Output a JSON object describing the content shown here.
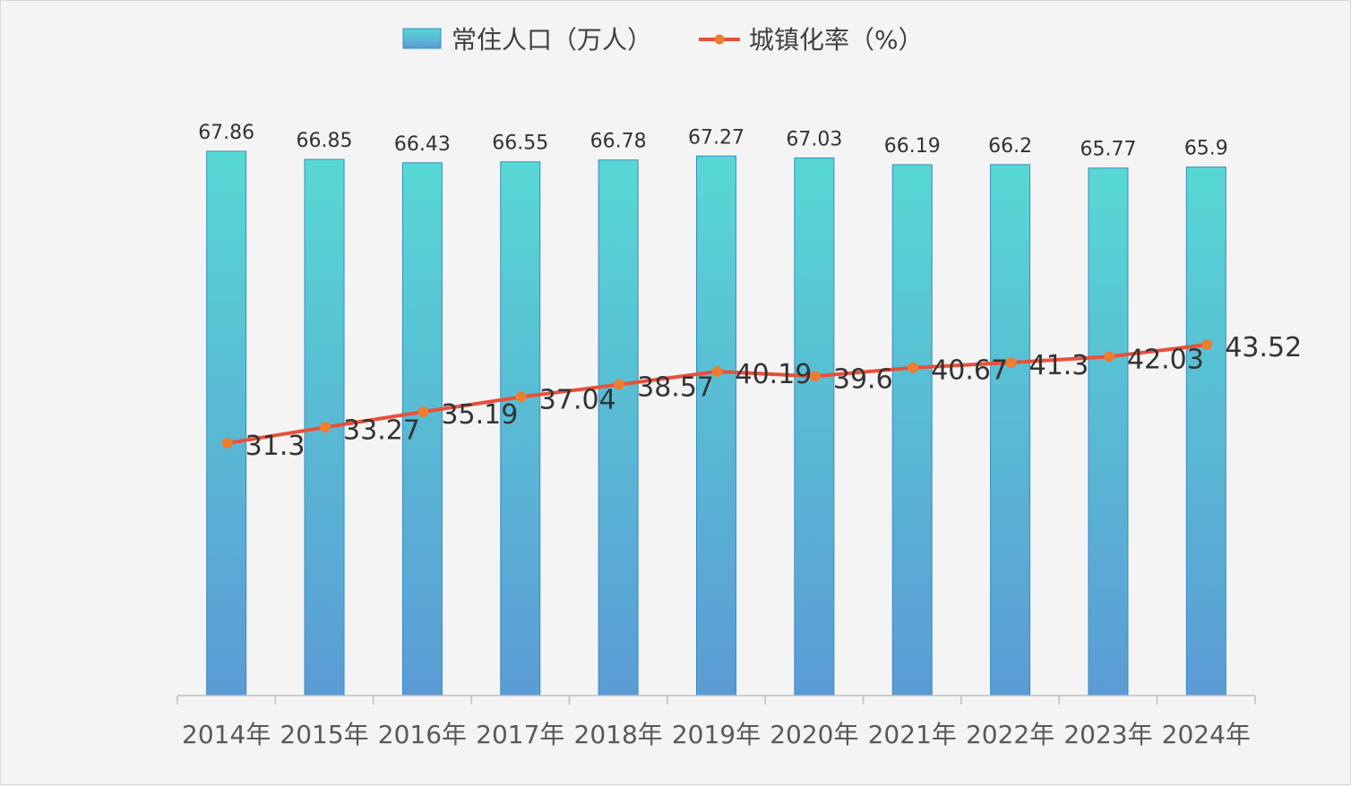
{
  "chart_data": {
    "type": "bar",
    "categories": [
      "2014年",
      "2015年",
      "2016年",
      "2017年",
      "2018年",
      "2019年",
      "2020年",
      "2021年",
      "2022年",
      "2023年",
      "2024年"
    ],
    "series": [
      {
        "name": "常住人口（万人）",
        "type": "bar",
        "values": [
          67.86,
          66.85,
          66.43,
          66.55,
          66.78,
          67.27,
          67.03,
          66.19,
          66.2,
          65.77,
          65.9
        ],
        "labels": [
          "67.86",
          "66.85",
          "66.43",
          "66.55",
          "66.78",
          "67.27",
          "67.03",
          "66.19",
          "66.2",
          "65.77",
          "65.9"
        ]
      },
      {
        "name": "城镇化率（%）",
        "type": "line",
        "values": [
          31.3,
          33.27,
          35.19,
          37.04,
          38.57,
          40.19,
          39.6,
          40.67,
          41.3,
          42.03,
          43.52
        ],
        "labels": [
          "31.3",
          "33.27",
          "35.19",
          "37.04",
          "38.57",
          "40.19",
          "39.6",
          "40.67",
          "41.3",
          "42.03",
          "43.52"
        ]
      }
    ],
    "legend_position": "top-center",
    "grid": false,
    "colors": {
      "bar_top": "#57d8d4",
      "bar_bottom": "#5b9bd5",
      "bar_border": "#3a8bbf",
      "line": "#e8503a",
      "marker": "#ed7d31"
    }
  }
}
